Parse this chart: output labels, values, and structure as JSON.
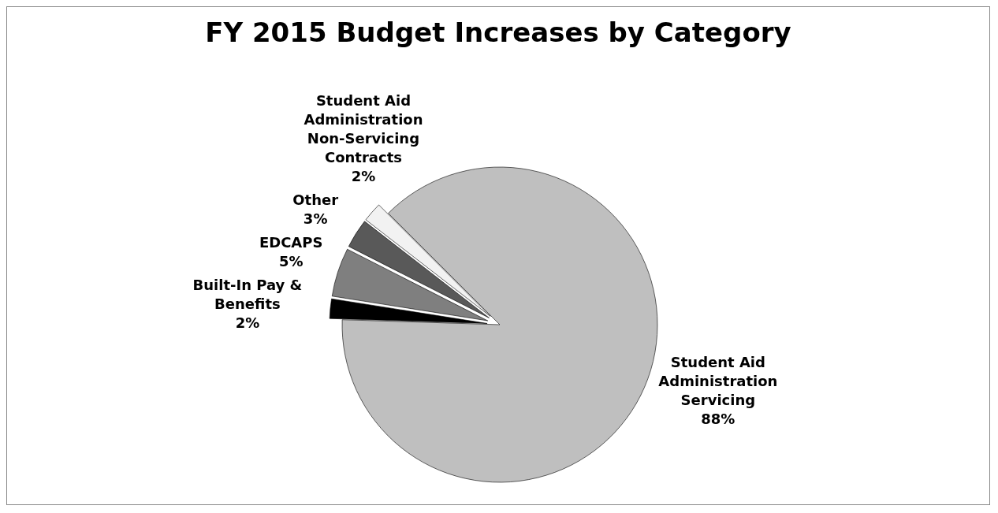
{
  "chart_data": {
    "type": "pie",
    "title": "FY 2015 Budget Increases by Category",
    "categories": [
      "Student Aid Administration Servicing",
      "Student Aid Administration Non-Servicing Contracts",
      "Other",
      "EDCAPS",
      "Built-In Pay & Benefits"
    ],
    "values": [
      88,
      2,
      3,
      5,
      2
    ],
    "colors": [
      "#bfbfbf",
      "#f2f2f2",
      "#595959",
      "#7f7f7f",
      "#000000"
    ],
    "value_labels": [
      "88%",
      "2%",
      "3%",
      "5%",
      "2%"
    ],
    "legend": false
  }
}
